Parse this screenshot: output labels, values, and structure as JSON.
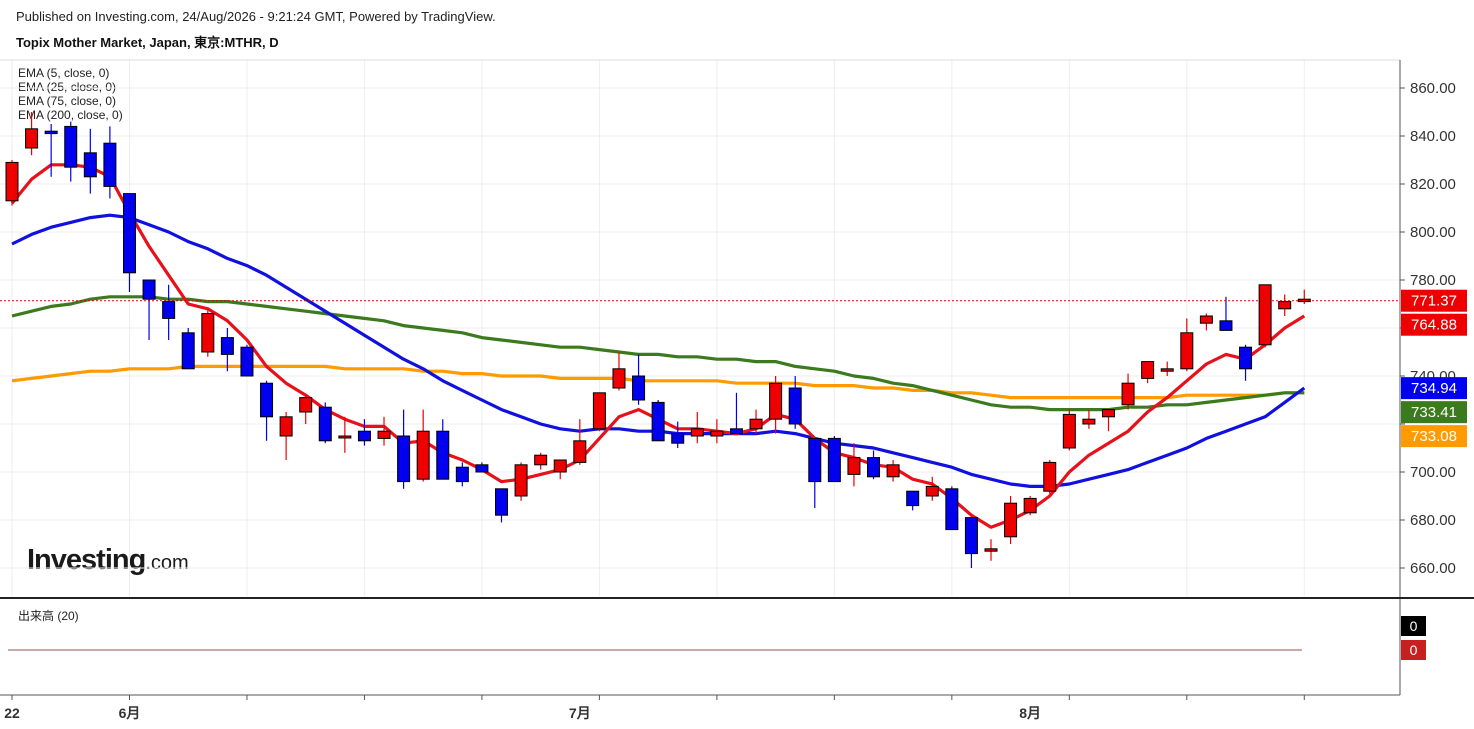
{
  "header": {
    "published": "Published on Investing.com, 24/Aug/2026 - 9:21:24 GMT, Powered by TradingView.",
    "symbol": "Topix Mother Market, Japan, 東京:MTHR, D"
  },
  "legend": [
    "EMA (5, close, 0)",
    "EMA (25, close, 0)",
    "EMA (75, close, 0)",
    "EMA (200, close, 0)"
  ],
  "volume_label": "出来高 (20)",
  "logo": {
    "main": "Investing",
    "suffix": ".com"
  },
  "colors": {
    "up": "#ee0000",
    "down": "#0000ee",
    "ema5": "#e8101a",
    "ema25": "#1010e0",
    "ema75": "#3c7a1e",
    "ema200": "#ff9a00",
    "grid": "#eeeeee",
    "last_price_line": "#e00000"
  },
  "chart_data": {
    "type": "candlestick",
    "y_ticks": [
      660,
      680,
      700,
      720,
      740,
      760,
      780,
      800,
      820,
      840,
      860
    ],
    "y_tick_labels": [
      "660.00",
      "680.00",
      "700.00",
      "",
      "740.00",
      "",
      "780.00",
      "800.00",
      "820.00",
      "840.00",
      "860.00"
    ],
    "ylim": [
      650,
      872
    ],
    "x_labels": [
      {
        "label": "22",
        "index": 0
      },
      {
        "label": "6月",
        "index": 6
      },
      {
        "label": "7月",
        "index": 29
      },
      {
        "label": "8月",
        "index": 52
      }
    ],
    "last_price": 771.37,
    "price_badges": [
      {
        "value": "771.37",
        "y": 771.37,
        "color": "#ee0000"
      },
      {
        "value": "764.88",
        "y": 764.88,
        "color": "#ee0000"
      },
      {
        "value": "734.94",
        "y": 734.94,
        "color": "#0000ee"
      },
      {
        "value": "733.41",
        "y": 733.41,
        "color": "#3c7a1e"
      },
      {
        "value": "733.08",
        "y": 733.08,
        "color": "#ff9a00"
      }
    ],
    "candles": [
      {
        "o": 813,
        "h": 830,
        "l": 811,
        "c": 829
      },
      {
        "o": 835,
        "h": 850,
        "l": 832,
        "c": 843
      },
      {
        "o": 842,
        "h": 845,
        "l": 823,
        "c": 841
      },
      {
        "o": 844,
        "h": 846,
        "l": 821,
        "c": 827
      },
      {
        "o": 833,
        "h": 843,
        "l": 816,
        "c": 823
      },
      {
        "o": 837,
        "h": 844,
        "l": 814,
        "c": 819
      },
      {
        "o": 816,
        "h": 816,
        "l": 775,
        "c": 783
      },
      {
        "o": 780,
        "h": 780,
        "l": 755,
        "c": 772
      },
      {
        "o": 771,
        "h": 778,
        "l": 755,
        "c": 764
      },
      {
        "o": 758,
        "h": 760,
        "l": 743,
        "c": 743
      },
      {
        "o": 750,
        "h": 768,
        "l": 748,
        "c": 766
      },
      {
        "o": 756,
        "h": 760,
        "l": 742,
        "c": 749
      },
      {
        "o": 752,
        "h": 753,
        "l": 740,
        "c": 740
      },
      {
        "o": 737,
        "h": 738,
        "l": 713,
        "c": 723
      },
      {
        "o": 715,
        "h": 725,
        "l": 705,
        "c": 723
      },
      {
        "o": 725,
        "h": 732,
        "l": 720,
        "c": 731
      },
      {
        "o": 727,
        "h": 729,
        "l": 712,
        "c": 713
      },
      {
        "o": 715,
        "h": 723,
        "l": 708,
        "c": 715
      },
      {
        "o": 717,
        "h": 722,
        "l": 711,
        "c": 713
      },
      {
        "o": 714,
        "h": 723,
        "l": 711,
        "c": 717
      },
      {
        "o": 715,
        "h": 726,
        "l": 693,
        "c": 696
      },
      {
        "o": 697,
        "h": 726,
        "l": 696,
        "c": 717
      },
      {
        "o": 717,
        "h": 722,
        "l": 697,
        "c": 697
      },
      {
        "o": 702,
        "h": 704,
        "l": 694,
        "c": 696
      },
      {
        "o": 703,
        "h": 704,
        "l": 700,
        "c": 700
      },
      {
        "o": 693,
        "h": 693,
        "l": 679,
        "c": 682
      },
      {
        "o": 690,
        "h": 704,
        "l": 688,
        "c": 703
      },
      {
        "o": 703,
        "h": 708,
        "l": 701,
        "c": 707
      },
      {
        "o": 700,
        "h": 705,
        "l": 697,
        "c": 705
      },
      {
        "o": 704,
        "h": 722,
        "l": 703,
        "c": 713
      },
      {
        "o": 718,
        "h": 733,
        "l": 717,
        "c": 733
      },
      {
        "o": 735,
        "h": 750,
        "l": 734,
        "c": 743
      },
      {
        "o": 740,
        "h": 749,
        "l": 728,
        "c": 730
      },
      {
        "o": 729,
        "h": 730,
        "l": 713,
        "c": 713
      },
      {
        "o": 716,
        "h": 721,
        "l": 710,
        "c": 712
      },
      {
        "o": 715,
        "h": 725,
        "l": 712,
        "c": 718
      },
      {
        "o": 715,
        "h": 722,
        "l": 712,
        "c": 717
      },
      {
        "o": 718,
        "h": 733,
        "l": 716,
        "c": 716
      },
      {
        "o": 718,
        "h": 726,
        "l": 716,
        "c": 722
      },
      {
        "o": 722,
        "h": 740,
        "l": 716,
        "c": 737
      },
      {
        "o": 735,
        "h": 740,
        "l": 718,
        "c": 720
      },
      {
        "o": 714,
        "h": 714,
        "l": 685,
        "c": 696
      },
      {
        "o": 714,
        "h": 715,
        "l": 696,
        "c": 696
      },
      {
        "o": 699,
        "h": 712,
        "l": 694,
        "c": 706
      },
      {
        "o": 706,
        "h": 709,
        "l": 697,
        "c": 698
      },
      {
        "o": 698,
        "h": 705,
        "l": 696,
        "c": 703
      },
      {
        "o": 692,
        "h": 692,
        "l": 684,
        "c": 686
      },
      {
        "o": 690,
        "h": 698,
        "l": 688,
        "c": 694
      },
      {
        "o": 693,
        "h": 694,
        "l": 676,
        "c": 676
      },
      {
        "o": 681,
        "h": 681,
        "l": 660,
        "c": 666
      },
      {
        "o": 667,
        "h": 672,
        "l": 663,
        "c": 668
      },
      {
        "o": 673,
        "h": 690,
        "l": 670,
        "c": 687
      },
      {
        "o": 683,
        "h": 690,
        "l": 682,
        "c": 689
      },
      {
        "o": 692,
        "h": 705,
        "l": 691,
        "c": 704
      },
      {
        "o": 710,
        "h": 726,
        "l": 709,
        "c": 724
      },
      {
        "o": 720,
        "h": 726,
        "l": 718,
        "c": 722
      },
      {
        "o": 723,
        "h": 725,
        "l": 717,
        "c": 726
      },
      {
        "o": 728,
        "h": 741,
        "l": 726,
        "c": 737
      },
      {
        "o": 739,
        "h": 746,
        "l": 737,
        "c": 746
      },
      {
        "o": 742,
        "h": 746,
        "l": 740,
        "c": 743
      },
      {
        "o": 743,
        "h": 764,
        "l": 742,
        "c": 758
      },
      {
        "o": 762,
        "h": 766,
        "l": 759,
        "c": 765
      },
      {
        "o": 763,
        "h": 773,
        "l": 759,
        "c": 759
      },
      {
        "o": 752,
        "h": 753,
        "l": 738,
        "c": 743
      },
      {
        "o": 753,
        "h": 778,
        "l": 752,
        "c": 778
      },
      {
        "o": 768,
        "h": 774,
        "l": 765,
        "c": 771
      },
      {
        "o": 771,
        "h": 776,
        "l": 770,
        "c": 772
      }
    ],
    "ema5": [
      812,
      822,
      828,
      828,
      827,
      823,
      808,
      794,
      782,
      770,
      768,
      763,
      755,
      744,
      737,
      732,
      726,
      722,
      719,
      719,
      712,
      713,
      708,
      705,
      701,
      696,
      697,
      699,
      701,
      705,
      714,
      723,
      726,
      722,
      718,
      718,
      717,
      716,
      718,
      724,
      722,
      714,
      708,
      706,
      703,
      702,
      697,
      695,
      689,
      682,
      677,
      680,
      684,
      690,
      700,
      707,
      712,
      717,
      725,
      731,
      738,
      745,
      749,
      747,
      753,
      760,
      765
    ],
    "ema25": [
      795,
      799,
      802,
      804,
      806,
      807,
      806,
      803,
      800,
      796,
      793,
      789,
      786,
      782,
      777,
      772,
      767,
      762,
      757,
      752,
      747,
      743,
      738,
      734,
      730,
      726,
      723,
      720,
      718,
      717,
      718,
      718,
      717,
      717,
      716,
      716,
      716,
      716,
      716,
      717,
      716,
      714,
      712,
      711,
      710,
      708,
      706,
      704,
      702,
      699,
      697,
      695,
      694,
      694,
      695,
      697,
      699,
      701,
      704,
      707,
      710,
      714,
      717,
      720,
      723,
      729,
      735
    ],
    "ema75": [
      765,
      767,
      769,
      770,
      772,
      773,
      773,
      773,
      772,
      772,
      771,
      771,
      770,
      769,
      768,
      767,
      766,
      765,
      764,
      763,
      761,
      760,
      759,
      758,
      756,
      755,
      754,
      753,
      752,
      752,
      751,
      750,
      749,
      749,
      748,
      748,
      747,
      747,
      746,
      746,
      744,
      743,
      742,
      740,
      739,
      737,
      736,
      734,
      732,
      730,
      728,
      727,
      727,
      726,
      726,
      726,
      726,
      727,
      727,
      728,
      728,
      729,
      730,
      731,
      732,
      733,
      733
    ],
    "ema200": [
      738,
      739,
      740,
      741,
      742,
      742,
      743,
      743,
      743,
      744,
      744,
      744,
      744,
      744,
      744,
      744,
      744,
      743,
      743,
      743,
      743,
      742,
      742,
      741,
      741,
      740,
      740,
      740,
      739,
      739,
      739,
      739,
      738,
      738,
      738,
      738,
      738,
      737,
      737,
      737,
      737,
      736,
      736,
      736,
      735,
      735,
      734,
      734,
      733,
      733,
      732,
      731,
      731,
      731,
      731,
      731,
      731,
      731,
      731,
      731,
      732,
      732,
      732,
      732,
      732,
      733,
      733
    ]
  }
}
